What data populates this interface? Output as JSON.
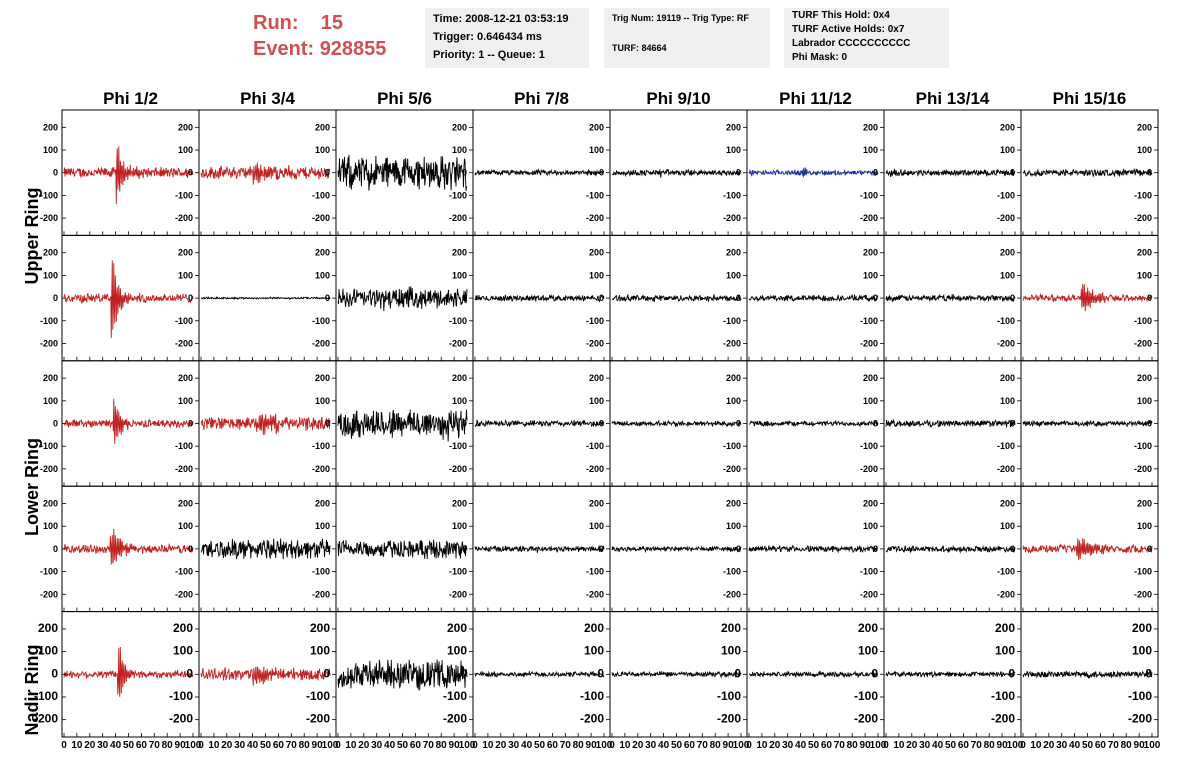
{
  "header": {
    "run_label": "Run:",
    "run_value": "15",
    "event_label": "Event:",
    "event_value": "928855",
    "info1": [
      "Time: 2008-12-21 03:53:19",
      "Trigger: 0.646434 ms",
      "Priority: 1 -- Queue: 1"
    ],
    "info2": [
      "Trig Num: 19119 -- Trig Type: RF",
      "",
      "TURF: 84664"
    ],
    "info3": [
      "TURF This Hold: 0x4",
      "TURF Active Holds: 0x7",
      "Labrador CCCCCCCCCC",
      "Phi Mask: 0"
    ]
  },
  "colors": {
    "triggered": "#c02020",
    "normal": "#000000",
    "highlight": "#1a2aa0",
    "header_text": "#d05050",
    "box_bg": "#efefef"
  },
  "chart_data": {
    "type": "line",
    "columns": [
      "Phi 1/2",
      "Phi 3/4",
      "Phi 5/6",
      "Phi 7/8",
      "Phi 9/10",
      "Phi 11/12",
      "Phi 13/14",
      "Phi 15/16"
    ],
    "rows": [
      "Upper Ring",
      "Lower Ring",
      "Nadir Ring"
    ],
    "ylim": [
      -250,
      250
    ],
    "xlim": [
      0,
      100
    ],
    "y_ticks": [
      -200,
      -100,
      0,
      100,
      200
    ],
    "y_tick_labels": [
      "-200",
      "-100",
      "0",
      "100",
      "200"
    ],
    "x_ticks": [
      0,
      10,
      20,
      30,
      40,
      50,
      60,
      70,
      80,
      90,
      100
    ],
    "x_tick_labels": [
      "0",
      "10",
      "20",
      "30",
      "40",
      "50",
      "60",
      "70",
      "80",
      "90",
      "100"
    ],
    "panels": [
      [
        {
          "color": "triggered",
          "amp": 25,
          "burst_amp": 125,
          "burst_at": 42,
          "burst_width": 6,
          "trace_end": 100
        },
        {
          "color": "triggered",
          "amp": 30,
          "burst_amp": 35,
          "burst_at": 45,
          "burst_width": 18,
          "trace_end": 100
        },
        {
          "color": "normal",
          "amp": 80,
          "burst_amp": 15,
          "burst_at": 50,
          "burst_width": 30,
          "trace_end": 100
        },
        {
          "color": "normal",
          "amp": 12,
          "burst_amp": 5,
          "burst_at": 50,
          "burst_width": 10,
          "trace_end": 100
        },
        {
          "color": "normal",
          "amp": 14,
          "burst_amp": 15,
          "burst_at": 38,
          "burst_width": 4,
          "trace_end": 100
        },
        {
          "color": "highlight",
          "amp": 12,
          "burst_amp": 25,
          "burst_at": 42,
          "burst_width": 4,
          "trace_end": 100
        },
        {
          "color": "normal",
          "amp": 14,
          "burst_amp": 25,
          "burst_at": 4,
          "burst_width": 4,
          "trace_end": 100
        },
        {
          "color": "normal",
          "amp": 16,
          "burst_amp": 12,
          "burst_at": 75,
          "burst_width": 10,
          "trace_end": 100
        }
      ],
      [
        {
          "color": "triggered",
          "amp": 22,
          "burst_amp": 210,
          "burst_at": 38,
          "burst_width": 5,
          "trace_end": 100
        },
        {
          "color": "normal",
          "amp": 4,
          "burst_amp": 0,
          "burst_at": 50,
          "burst_width": 10,
          "trace_end": 100
        },
        {
          "color": "normal",
          "amp": 45,
          "burst_amp": 20,
          "burst_at": 40,
          "burst_width": 20,
          "trace_end": 100
        },
        {
          "color": "normal",
          "amp": 14,
          "burst_amp": 6,
          "burst_at": 50,
          "burst_width": 10,
          "trace_end": 100
        },
        {
          "color": "normal",
          "amp": 14,
          "burst_amp": 8,
          "burst_at": 30,
          "burst_width": 10,
          "trace_end": 100
        },
        {
          "color": "normal",
          "amp": 14,
          "burst_amp": 6,
          "burst_at": 50,
          "burst_width": 10,
          "trace_end": 100
        },
        {
          "color": "normal",
          "amp": 14,
          "burst_amp": 6,
          "burst_at": 50,
          "burst_width": 10,
          "trace_end": 100
        },
        {
          "color": "triggered",
          "amp": 16,
          "burst_amp": 65,
          "burst_at": 48,
          "burst_width": 10,
          "trace_end": 100
        }
      ],
      [
        {
          "color": "triggered",
          "amp": 18,
          "burst_amp": 110,
          "burst_at": 40,
          "burst_width": 6,
          "trace_end": 100
        },
        {
          "color": "triggered",
          "amp": 30,
          "burst_amp": 40,
          "burst_at": 48,
          "burst_width": 18,
          "trace_end": 100
        },
        {
          "color": "normal",
          "amp": 70,
          "burst_amp": 15,
          "burst_at": 80,
          "burst_width": 15,
          "trace_end": 100
        },
        {
          "color": "normal",
          "amp": 14,
          "burst_amp": 5,
          "burst_at": 50,
          "burst_width": 10,
          "trace_end": 100
        },
        {
          "color": "normal",
          "amp": 12,
          "burst_amp": 5,
          "burst_at": 50,
          "burst_width": 10,
          "trace_end": 100
        },
        {
          "color": "normal",
          "amp": 12,
          "burst_amp": 5,
          "burst_at": 50,
          "burst_width": 10,
          "trace_end": 100
        },
        {
          "color": "normal",
          "amp": 16,
          "burst_amp": 5,
          "burst_at": 50,
          "burst_width": 10,
          "trace_end": 100
        },
        {
          "color": "normal",
          "amp": 12,
          "burst_amp": 5,
          "burst_at": 50,
          "burst_width": 10,
          "trace_end": 100
        }
      ],
      [
        {
          "color": "triggered",
          "amp": 20,
          "burst_amp": 100,
          "burst_at": 38,
          "burst_width": 8,
          "trace_end": 100
        },
        {
          "color": "normal",
          "amp": 45,
          "burst_amp": 8,
          "burst_at": 50,
          "burst_width": 20,
          "trace_end": 100
        },
        {
          "color": "normal",
          "amp": 42,
          "burst_amp": 8,
          "burst_at": 50,
          "burst_width": 20,
          "trace_end": 100
        },
        {
          "color": "normal",
          "amp": 14,
          "burst_amp": 5,
          "burst_at": 50,
          "burst_width": 10,
          "trace_end": 100
        },
        {
          "color": "normal",
          "amp": 12,
          "burst_amp": 5,
          "burst_at": 50,
          "burst_width": 10,
          "trace_end": 100
        },
        {
          "color": "normal",
          "amp": 14,
          "burst_amp": 5,
          "burst_at": 50,
          "burst_width": 10,
          "trace_end": 100
        },
        {
          "color": "normal",
          "amp": 14,
          "burst_amp": 5,
          "burst_at": 50,
          "burst_width": 10,
          "trace_end": 100
        },
        {
          "color": "triggered",
          "amp": 18,
          "burst_amp": 55,
          "burst_at": 45,
          "burst_width": 12,
          "trace_end": 100
        }
      ],
      [
        {
          "color": "triggered",
          "amp": 18,
          "burst_amp": 150,
          "burst_at": 43,
          "burst_width": 5,
          "trace_end": 100
        },
        {
          "color": "triggered",
          "amp": 28,
          "burst_amp": 40,
          "burst_at": 45,
          "burst_width": 15,
          "trace_end": 100
        },
        {
          "color": "normal",
          "amp": 65,
          "burst_amp": 15,
          "burst_at": 50,
          "burst_width": 25,
          "trace_end": 100
        },
        {
          "color": "normal",
          "amp": 12,
          "burst_amp": 5,
          "burst_at": 50,
          "burst_width": 10,
          "trace_end": 100
        },
        {
          "color": "normal",
          "amp": 12,
          "burst_amp": 5,
          "burst_at": 50,
          "burst_width": 10,
          "trace_end": 100
        },
        {
          "color": "normal",
          "amp": 12,
          "burst_amp": 5,
          "burst_at": 50,
          "burst_width": 10,
          "trace_end": 100
        },
        {
          "color": "normal",
          "amp": 12,
          "burst_amp": 5,
          "burst_at": 50,
          "burst_width": 10,
          "trace_end": 100
        },
        {
          "color": "normal",
          "amp": 16,
          "burst_amp": 5,
          "burst_at": 50,
          "burst_width": 10,
          "trace_end": 100
        }
      ]
    ]
  }
}
